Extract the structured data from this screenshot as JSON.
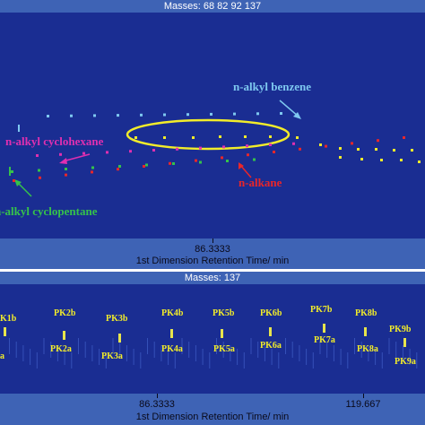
{
  "top_panel": {
    "title": "Masses:  68 82 92 137",
    "x_tick": "86.3333",
    "x_title": "1st Dimension Retention Time/ min",
    "annotations": {
      "benzene": "n-alkyl  benzene",
      "cyclohexane": "n-alkyl cyclohexane",
      "alkane": "n-alkane",
      "cyclopentane": "n-alkyl cyclopentane"
    },
    "colors": {
      "background": "#1a2d92",
      "benzene": "#7ec8f0",
      "cyclohexane": "#e02fb0",
      "alkane": "#e8262a",
      "cyclopentane": "#35c24a",
      "highlight": "#f2ec2a"
    }
  },
  "bottom_panel": {
    "title": "Masses:  137",
    "x_ticks": [
      "86.3333",
      "119.667"
    ],
    "x_title": "1st Dimension Retention Time/ min",
    "peak_labels": [
      "K1b",
      "PK2b",
      "PK3b",
      "PK4b",
      "PK5b",
      "PK6b",
      "PK7b",
      "PK8b",
      "PK9b",
      "PK2a",
      "PK3a",
      "PK4a",
      "PK5a",
      "PK6a",
      "PK7a",
      "PK8a",
      "PK9a",
      "a"
    ]
  }
}
